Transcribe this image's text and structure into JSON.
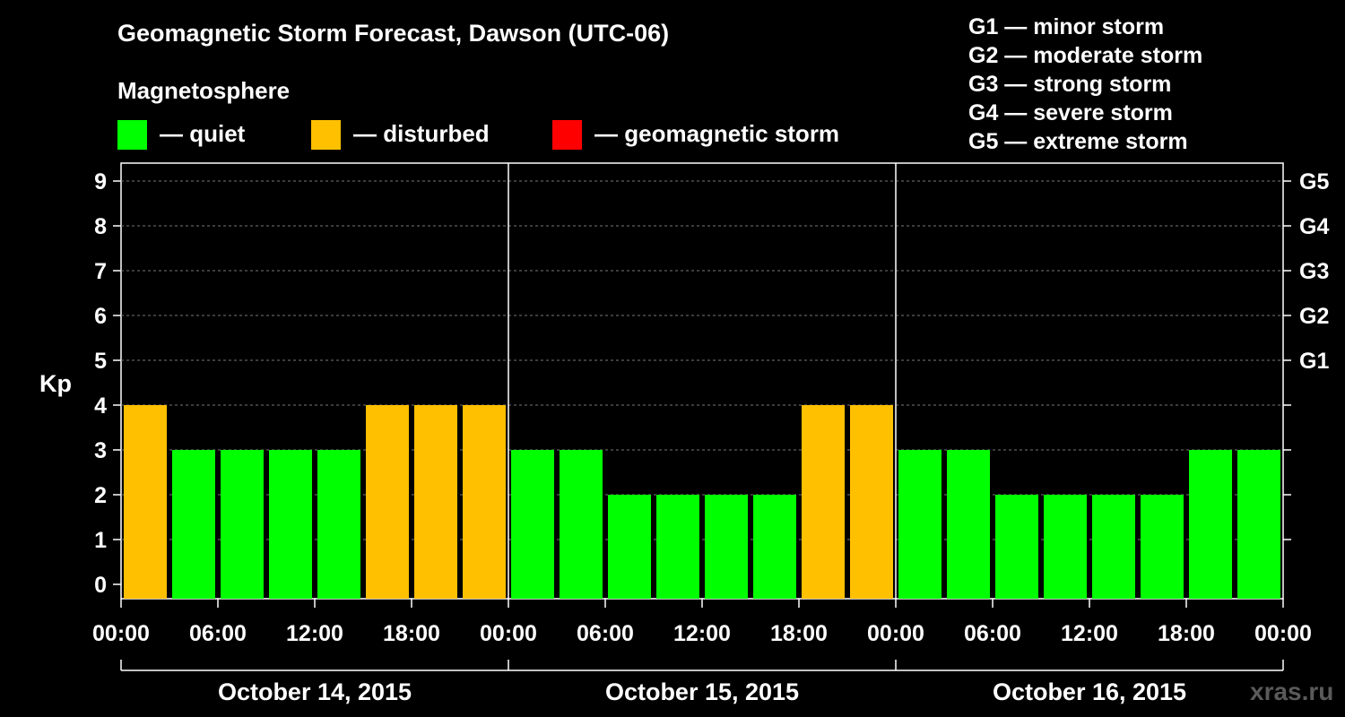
{
  "title": "Geomagnetic Storm Forecast, Dawson (UTC-06)",
  "magnetosphere_label": "Magnetosphere",
  "legend": [
    {
      "label": "— quiet",
      "color": "#00ff00"
    },
    {
      "label": "— disturbed",
      "color": "#ffc000"
    },
    {
      "label": "— geomagnetic storm",
      "color": "#ff0000"
    }
  ],
  "storm_levels": [
    "G1 — minor storm",
    "G2 — moderate storm",
    "G3 — strong storm",
    "G4 — severe storm",
    "G5 — extreme storm"
  ],
  "watermark": "xras.ru",
  "chart_data": {
    "type": "bar",
    "ylabel": "Kp",
    "ylim": [
      0,
      9
    ],
    "yticks": [
      0,
      1,
      2,
      3,
      4,
      5,
      6,
      7,
      8,
      9
    ],
    "right_axis_labels": [
      {
        "kp": 5,
        "label": "G1"
      },
      {
        "kp": 6,
        "label": "G2"
      },
      {
        "kp": 7,
        "label": "G3"
      },
      {
        "kp": 8,
        "label": "G4"
      },
      {
        "kp": 9,
        "label": "G5"
      }
    ],
    "grid": true,
    "xtick_labels": [
      "00:00",
      "06:00",
      "12:00",
      "18:00",
      "00:00",
      "06:00",
      "12:00",
      "18:00",
      "00:00",
      "06:00",
      "12:00",
      "18:00",
      "00:00"
    ],
    "days": [
      "October 14, 2015",
      "October 15, 2015",
      "October 16, 2015"
    ],
    "interval_hours": 3,
    "values": [
      4,
      3,
      3,
      3,
      3,
      4,
      4,
      4,
      3,
      3,
      2,
      2,
      2,
      2,
      4,
      4,
      3,
      3,
      2,
      2,
      2,
      2,
      3,
      3
    ],
    "status_colors": {
      "quiet": "#00ff00",
      "disturbed": "#ffc000",
      "storm": "#ff0000"
    },
    "thresholds": {
      "disturbed_min": 4,
      "storm_min": 5
    }
  }
}
